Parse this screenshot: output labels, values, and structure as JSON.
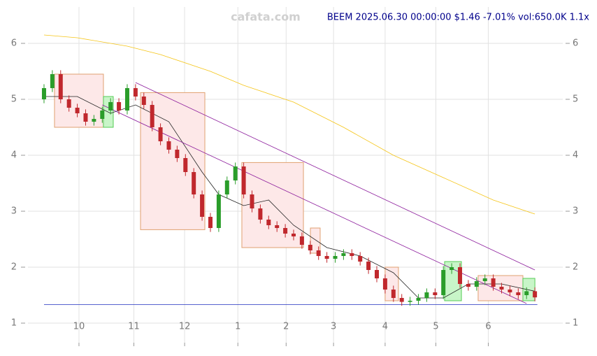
{
  "chart_data": {
    "type": "candlestick",
    "title": "BEEM 2025.06.30 00:00:00 $1.46 -7.01% vol:650.0K 1.1x",
    "watermark": "cafata.com",
    "xlim": [
      -1.93,
      62.35
    ],
    "ylim": [
      0.65,
      6.6
    ],
    "yticks": [
      1,
      2,
      3,
      4,
      5,
      6
    ],
    "xticks": [
      {
        "value": 4.2,
        "label": "10"
      },
      {
        "value": 10.8,
        "label": "11"
      },
      {
        "value": 16.9,
        "label": "12"
      },
      {
        "value": 23.3,
        "label": "1"
      },
      {
        "value": 29.1,
        "label": "2"
      },
      {
        "value": 34.8,
        "label": "3"
      },
      {
        "value": 41,
        "label": "4"
      },
      {
        "value": 47.1,
        "label": "5"
      },
      {
        "value": 53.4,
        "label": "6"
      }
    ],
    "grid": true,
    "up_color": "#2a9d2a",
    "down_color": "#c0282d",
    "open": [
      5.0,
      5.2,
      5.45,
      5.0,
      4.85,
      4.75,
      4.6,
      4.65,
      4.8,
      4.95,
      4.8,
      5.2,
      5.05,
      4.9,
      4.5,
      4.25,
      4.1,
      3.95,
      3.7,
      3.3,
      2.9,
      2.7,
      3.3,
      3.55,
      3.8,
      3.3,
      3.05,
      2.85,
      2.75,
      2.7,
      2.6,
      2.55,
      2.4,
      2.3,
      2.2,
      2.15,
      2.2,
      2.25,
      2.2,
      2.1,
      1.95,
      1.8,
      1.6,
      1.45,
      1.38,
      1.4,
      1.45,
      1.55,
      1.5,
      1.95,
      2.0,
      1.7,
      1.65,
      1.75,
      1.8,
      1.65,
      1.6,
      1.55,
      1.5,
      1.57
    ],
    "high": [
      5.27,
      5.52,
      5.52,
      5.07,
      4.92,
      4.82,
      4.72,
      4.87,
      5.02,
      5.02,
      5.27,
      5.27,
      5.12,
      4.97,
      4.57,
      4.32,
      4.17,
      4.02,
      3.77,
      3.37,
      2.97,
      3.37,
      3.62,
      3.87,
      3.87,
      3.37,
      3.12,
      2.92,
      2.82,
      2.77,
      2.67,
      2.62,
      2.47,
      2.37,
      2.27,
      2.27,
      2.32,
      2.32,
      2.27,
      2.17,
      2.02,
      1.87,
      1.67,
      1.52,
      1.47,
      1.52,
      1.62,
      1.62,
      2.02,
      2.07,
      2.07,
      1.77,
      1.82,
      1.87,
      1.87,
      1.72,
      1.67,
      1.62,
      1.64,
      1.64
    ],
    "low": [
      4.93,
      5.13,
      4.93,
      4.78,
      4.68,
      4.53,
      4.53,
      4.58,
      4.73,
      4.73,
      4.73,
      4.98,
      4.83,
      4.43,
      4.18,
      4.03,
      3.88,
      3.63,
      3.23,
      2.83,
      2.63,
      2.63,
      3.23,
      3.48,
      3.23,
      2.98,
      2.78,
      2.68,
      2.63,
      2.53,
      2.48,
      2.33,
      2.23,
      2.13,
      2.08,
      2.08,
      2.13,
      2.13,
      2.03,
      1.88,
      1.73,
      1.53,
      1.38,
      1.31,
      1.31,
      1.33,
      1.38,
      1.43,
      1.43,
      1.88,
      1.63,
      1.58,
      1.58,
      1.68,
      1.58,
      1.53,
      1.48,
      1.43,
      1.43,
      1.39
    ],
    "close": [
      5.2,
      5.45,
      5.0,
      4.85,
      4.75,
      4.6,
      4.65,
      4.8,
      4.95,
      4.8,
      5.2,
      5.05,
      4.9,
      4.5,
      4.25,
      4.1,
      3.95,
      3.7,
      3.3,
      2.9,
      2.7,
      3.3,
      3.55,
      3.8,
      3.3,
      3.05,
      2.85,
      2.75,
      2.7,
      2.6,
      2.55,
      2.4,
      2.3,
      2.2,
      2.15,
      2.2,
      2.25,
      2.2,
      2.1,
      1.95,
      1.8,
      1.6,
      1.45,
      1.38,
      1.4,
      1.45,
      1.55,
      1.5,
      1.95,
      2.0,
      1.7,
      1.65,
      1.75,
      1.8,
      1.65,
      1.6,
      1.55,
      1.5,
      1.57,
      1.46
    ],
    "boxes": [
      {
        "x": [
          1.26,
          7.14
        ],
        "y": [
          4.5,
          5.45
        ],
        "fill": "#fde8e8",
        "stroke": "#e0a070"
      },
      {
        "x": [
          7.14,
          8.32
        ],
        "y": [
          4.5,
          5.05
        ],
        "fill": "#c8f5c8",
        "stroke": "#55cc55"
      },
      {
        "x": [
          11.6,
          19.33
        ],
        "y": [
          2.67,
          5.12
        ],
        "fill": "#fde8e8",
        "stroke": "#e0a070"
      },
      {
        "x": [
          23.78,
          31.18
        ],
        "y": [
          2.35,
          3.87
        ],
        "fill": "#fde8e8",
        "stroke": "#e0a070"
      },
      {
        "x": [
          32.02,
          33.19
        ],
        "y": [
          2.25,
          2.7
        ],
        "fill": "#fde8e8",
        "stroke": "#e0a070"
      },
      {
        "x": [
          41.0,
          42.6
        ],
        "y": [
          1.4,
          2.0
        ],
        "fill": "#fde8e8",
        "stroke": "#e0a070"
      },
      {
        "x": [
          48.15,
          50.17
        ],
        "y": [
          1.4,
          2.1
        ],
        "fill": "#c8f5c8",
        "stroke": "#55cc55"
      },
      {
        "x": [
          52.18,
          57.56
        ],
        "y": [
          1.4,
          1.85
        ],
        "fill": "#fde8e8",
        "stroke": "#e0a070"
      },
      {
        "x": [
          57.56,
          59.0
        ],
        "y": [
          1.4,
          1.8
        ],
        "fill": "#c8f5c8",
        "stroke": "#55cc55"
      }
    ],
    "lines": [
      {
        "color": "#f5c518",
        "x": [
          0,
          4,
          10,
          14,
          20,
          24,
          30,
          36,
          42,
          48,
          54,
          59
        ],
        "y": [
          6.15,
          6.1,
          5.95,
          5.8,
          5.5,
          5.25,
          4.95,
          4.5,
          4.0,
          3.6,
          3.2,
          2.95
        ]
      },
      {
        "color": "#222222",
        "x": [
          0,
          4,
          8,
          11,
          15,
          19,
          21,
          24,
          27,
          30,
          34,
          38,
          42,
          45,
          48,
          51,
          55,
          59
        ],
        "y": [
          5.05,
          5.05,
          4.75,
          4.9,
          4.6,
          3.7,
          3.3,
          3.1,
          3.2,
          2.75,
          2.35,
          2.2,
          1.9,
          1.45,
          1.45,
          1.7,
          1.7,
          1.57
        ]
      },
      {
        "color": "#8b1a9b",
        "x": [
          7,
          58
        ],
        "y": [
          4.9,
          1.35
        ]
      },
      {
        "color": "#8b1a9b",
        "x": [
          11,
          59
        ],
        "y": [
          5.3,
          1.95
        ]
      },
      {
        "color": "#1f2fbf",
        "x": [
          0,
          59.3
        ],
        "y": [
          1.33,
          1.33
        ]
      }
    ]
  }
}
